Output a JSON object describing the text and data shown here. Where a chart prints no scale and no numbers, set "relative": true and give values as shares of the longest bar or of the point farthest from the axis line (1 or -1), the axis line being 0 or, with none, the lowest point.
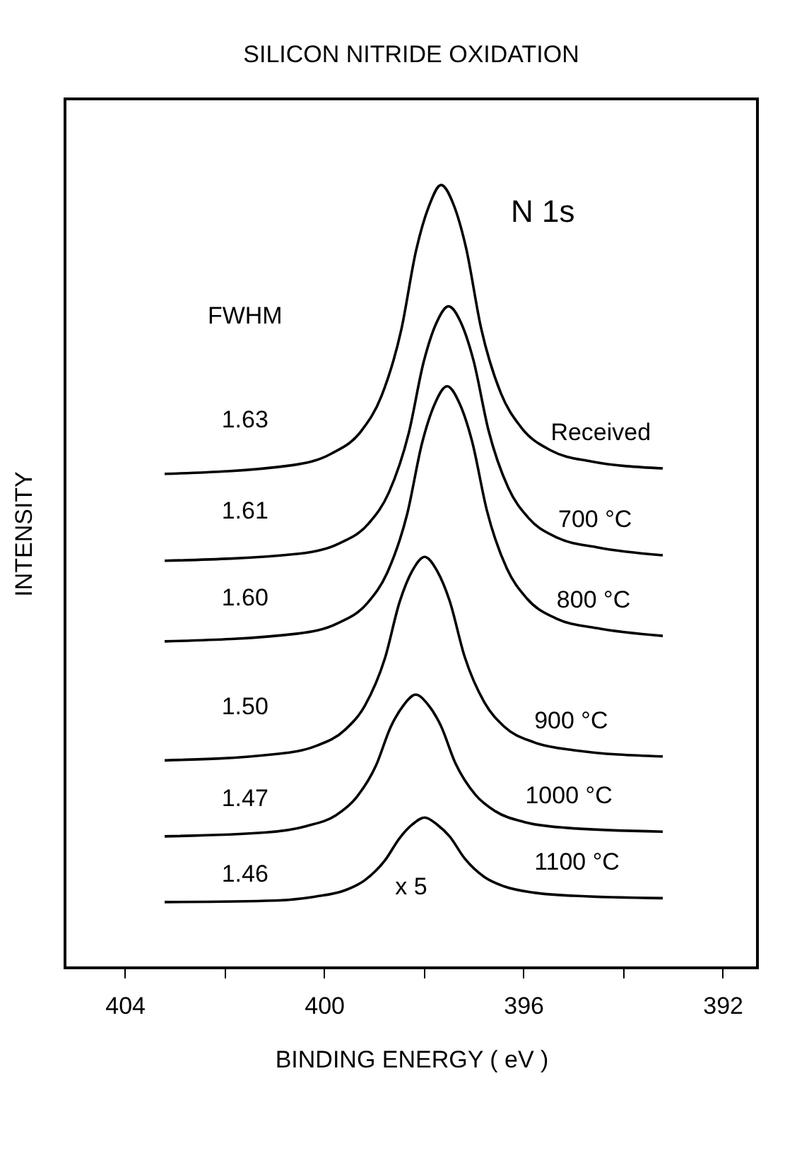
{
  "chart_data": {
    "type": "line",
    "title": "SILICON NITRIDE OXIDATION",
    "xlabel": "BINDING ENERGY ( eV )",
    "ylabel": "INTENSITY",
    "relative": true,
    "xlim": [
      405.2,
      391.3
    ],
    "xticks": [
      404,
      {
        "value": 402,
        "label": null
      },
      400,
      {
        "value": 398,
        "label": null
      },
      396,
      {
        "value": 394,
        "label": null
      },
      392
    ],
    "legend": false,
    "series": [
      {
        "name": "Received",
        "color": "#000000",
        "x": [
          403.2,
          400.65,
          399.85,
          399.25,
          398.85,
          398.45,
          398.15,
          397.9,
          397.65,
          397.4,
          397.15,
          396.85,
          396.45,
          396.05,
          395.45,
          394.65,
          393.2
        ],
        "values": [
          0.631,
          0.642,
          0.657,
          0.686,
          0.73,
          0.815,
          0.917,
          0.972,
          1.0,
          0.975,
          0.92,
          0.818,
          0.734,
          0.691,
          0.661,
          0.647,
          0.638
        ]
      },
      {
        "name": "700 °C",
        "color": "#000000",
        "x": [
          403.2,
          400.5,
          399.7,
          399.1,
          398.7,
          398.3,
          398.0,
          397.75,
          397.5,
          397.25,
          397.0,
          396.7,
          396.3,
          395.9,
          395.3,
          394.5,
          393.2
        ],
        "values": [
          0.52,
          0.529,
          0.542,
          0.568,
          0.607,
          0.683,
          0.774,
          0.823,
          0.845,
          0.824,
          0.776,
          0.687,
          0.613,
          0.575,
          0.549,
          0.537,
          0.527
        ]
      },
      {
        "name": "800 °C",
        "color": "#000000",
        "x": [
          403.2,
          400.53,
          399.73,
          399.13,
          398.73,
          398.33,
          398.03,
          397.78,
          397.53,
          397.28,
          397.03,
          396.73,
          396.33,
          395.93,
          395.33,
          394.53,
          393.2
        ],
        "values": [
          0.417,
          0.427,
          0.44,
          0.466,
          0.505,
          0.58,
          0.671,
          0.72,
          0.743,
          0.721,
          0.673,
          0.584,
          0.51,
          0.472,
          0.446,
          0.434,
          0.424
        ]
      },
      {
        "name": "900 °C",
        "color": "#000000",
        "x": [
          403.2,
          400.98,
          400.18,
          399.58,
          399.18,
          398.78,
          398.48,
          398.23,
          397.98,
          397.73,
          397.48,
          397.18,
          396.78,
          396.38,
          395.78,
          394.98,
          393.2
        ],
        "values": [
          0.265,
          0.273,
          0.283,
          0.304,
          0.335,
          0.395,
          0.468,
          0.507,
          0.525,
          0.507,
          0.469,
          0.398,
          0.339,
          0.308,
          0.288,
          0.278,
          0.27
        ]
      },
      {
        "name": "1000 °C",
        "color": "#000000",
        "x": [
          403.2,
          401.16,
          400.36,
          399.76,
          399.36,
          398.96,
          398.66,
          398.41,
          398.16,
          397.91,
          397.66,
          397.36,
          396.96,
          396.56,
          395.96,
          395.16,
          393.2
        ],
        "values": [
          0.168,
          0.173,
          0.181,
          0.195,
          0.217,
          0.258,
          0.308,
          0.335,
          0.349,
          0.336,
          0.31,
          0.261,
          0.221,
          0.2,
          0.186,
          0.179,
          0.174
        ]
      },
      {
        "name": "1100 °C",
        "color": "#000000",
        "x": [
          403.2,
          400.98,
          400.18,
          399.58,
          399.18,
          398.78,
          398.48,
          398.23,
          397.98,
          397.73,
          397.48,
          397.18,
          396.78,
          396.38,
          395.78,
          394.98,
          393.2
        ],
        "values": [
          0.084,
          0.086,
          0.091,
          0.099,
          0.112,
          0.137,
          0.166,
          0.183,
          0.192,
          0.183,
          0.168,
          0.14,
          0.116,
          0.104,
          0.096,
          0.092,
          0.089
        ]
      }
    ],
    "annotations": [
      "N 1s",
      "FWHM",
      "1.63",
      "1.61",
      "1.60",
      "1.50",
      "1.47",
      "1.46",
      "x 5"
    ]
  }
}
